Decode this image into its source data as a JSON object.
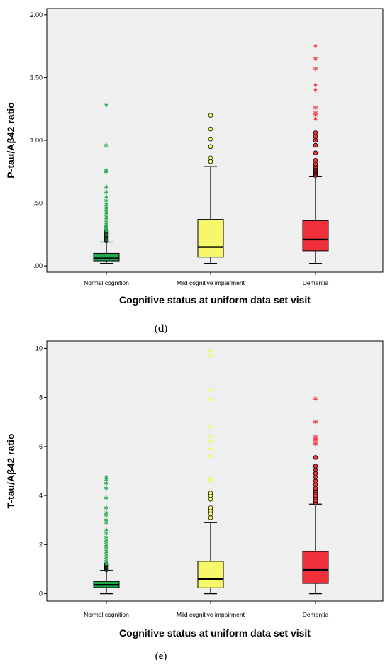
{
  "chart_data": [
    {
      "type": "box",
      "panel_label": "d",
      "xlabel": "Cognitive status at uniform data set visit",
      "ylabel": "P-tau/Aβ42 ratio",
      "ylim": [
        -0.05,
        2.05
      ],
      "yticks": [
        0,
        0.5,
        1.0,
        1.5,
        2.0
      ],
      "ytick_labels": [
        ".00",
        ".50",
        "1.00",
        "1.50",
        "2.00"
      ],
      "categories": [
        "Normal cognition",
        "Mild cognitive impairment",
        "Dementia"
      ],
      "colors": [
        "#1faa4a",
        "#f7f76a",
        "#f0303a"
      ],
      "grid": false,
      "boxes": [
        {
          "category": "Normal cognition",
          "whisker_low": 0.02,
          "q1": 0.04,
          "median": 0.06,
          "q3": 0.1,
          "whisker_high": 0.19,
          "outliers_circle": [
            0.2,
            0.21,
            0.22,
            0.23,
            0.24,
            0.25,
            0.26,
            0.27,
            0.28
          ],
          "outliers_star": [
            0.29,
            0.3,
            0.31,
            0.32,
            0.33,
            0.35,
            0.37,
            0.39,
            0.41,
            0.43,
            0.45,
            0.47,
            0.49,
            0.52,
            0.55,
            0.59,
            0.63,
            0.75,
            0.76,
            0.96,
            1.28
          ]
        },
        {
          "category": "Mild cognitive impairment",
          "whisker_low": 0.02,
          "q1": 0.07,
          "median": 0.15,
          "q3": 0.37,
          "whisker_high": 0.79,
          "outliers_circle": [
            0.83,
            0.86,
            0.95,
            1.01,
            1.09,
            1.2
          ],
          "outliers_star": []
        },
        {
          "category": "Dementia",
          "whisker_low": 0.02,
          "q1": 0.12,
          "median": 0.21,
          "q3": 0.36,
          "whisker_high": 0.71,
          "outliers_circle": [
            0.72,
            0.73,
            0.74,
            0.75,
            0.76,
            0.77,
            0.78,
            0.79,
            0.81,
            0.84,
            0.9,
            0.96,
            1.0,
            1.03,
            1.06
          ],
          "outliers_star": [
            1.17,
            1.2,
            1.22,
            1.26,
            1.4,
            1.44,
            1.57,
            1.65,
            1.75
          ]
        }
      ]
    },
    {
      "type": "box",
      "panel_label": "e",
      "xlabel": "Cognitive status at uniform data set visit",
      "ylabel": "T-tau/Aβ42 ratio",
      "ylim": [
        -0.3,
        10.3
      ],
      "yticks": [
        0,
        2,
        4,
        6,
        8,
        10
      ],
      "ytick_labels": [
        "0",
        "2",
        "4",
        "6",
        "8",
        "10"
      ],
      "categories": [
        "Normal cognition",
        "Mild cognitive impairment",
        "Dementia"
      ],
      "colors": [
        "#1faa4a",
        "#f7f76a",
        "#f0303a"
      ],
      "grid": false,
      "boxes": [
        {
          "category": "Normal cognition",
          "whisker_low": 0.0,
          "q1": 0.25,
          "median": 0.36,
          "q3": 0.5,
          "whisker_high": 0.95,
          "outliers_circle": [
            0.98,
            1.02,
            1.06,
            1.1,
            1.14,
            1.18,
            1.22
          ],
          "outliers_star": [
            1.3,
            1.4,
            1.5,
            1.6,
            1.7,
            1.8,
            1.9,
            2.0,
            2.1,
            2.2,
            2.3,
            2.45,
            2.6,
            2.9,
            3.0,
            3.2,
            3.3,
            3.5,
            3.9,
            4.3,
            4.5,
            4.65,
            4.75
          ]
        },
        {
          "category": "Mild cognitive impairment",
          "whisker_low": 0.0,
          "q1": 0.24,
          "median": 0.6,
          "q3": 1.32,
          "whisker_high": 2.9,
          "outliers_circle": [
            3.1,
            3.25,
            3.4,
            3.5,
            3.85,
            4.0,
            4.1
          ],
          "outliers_star": [
            4.6,
            4.7,
            5.6,
            5.9,
            6.2,
            6.4,
            6.8,
            7.9,
            8.3,
            9.7,
            9.9
          ]
        },
        {
          "category": "Dementia",
          "whisker_low": 0.0,
          "q1": 0.42,
          "median": 0.97,
          "q3": 1.72,
          "whisker_high": 3.65,
          "outliers_circle": [
            3.7,
            3.8,
            3.9,
            4.0,
            4.1,
            4.2,
            4.3,
            4.45,
            4.6,
            4.75,
            4.9,
            5.05,
            5.2,
            5.55
          ],
          "outliers_star": [
            6.1,
            6.2,
            6.3,
            6.4,
            7.0,
            7.95
          ]
        }
      ]
    }
  ]
}
